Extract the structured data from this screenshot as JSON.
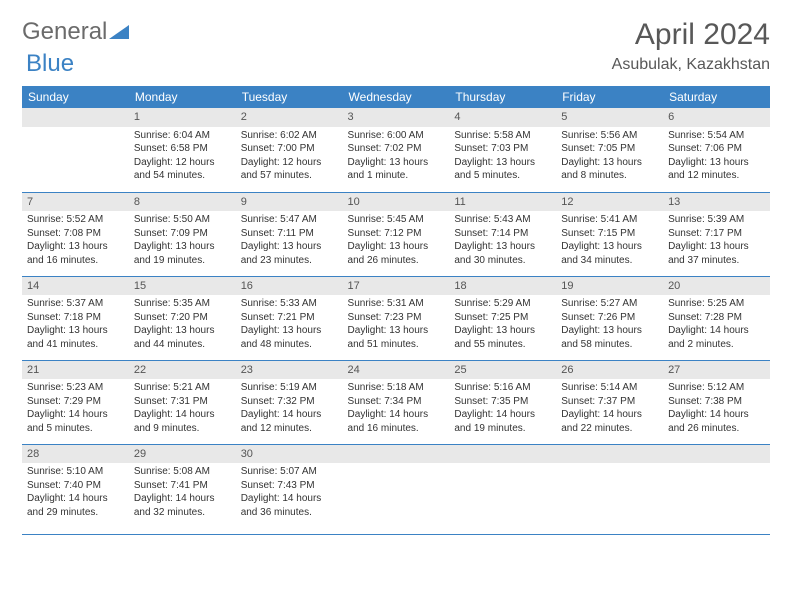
{
  "logo": {
    "word1": "General",
    "word2": "Blue"
  },
  "title": "April 2024",
  "location": "Asubulak, Kazakhstan",
  "colors": {
    "header_bg": "#3b82c4",
    "header_fg": "#ffffff",
    "daynum_bg": "#e8e8e8",
    "border": "#3b82c4",
    "logo_gray": "#6b6b6b",
    "logo_blue": "#3b82c4"
  },
  "weekdays": [
    "Sunday",
    "Monday",
    "Tuesday",
    "Wednesday",
    "Thursday",
    "Friday",
    "Saturday"
  ],
  "weeks": [
    [
      {
        "day": "",
        "lines": []
      },
      {
        "day": "1",
        "lines": [
          "Sunrise: 6:04 AM",
          "Sunset: 6:58 PM",
          "Daylight: 12 hours",
          "and 54 minutes."
        ]
      },
      {
        "day": "2",
        "lines": [
          "Sunrise: 6:02 AM",
          "Sunset: 7:00 PM",
          "Daylight: 12 hours",
          "and 57 minutes."
        ]
      },
      {
        "day": "3",
        "lines": [
          "Sunrise: 6:00 AM",
          "Sunset: 7:02 PM",
          "Daylight: 13 hours",
          "and 1 minute."
        ]
      },
      {
        "day": "4",
        "lines": [
          "Sunrise: 5:58 AM",
          "Sunset: 7:03 PM",
          "Daylight: 13 hours",
          "and 5 minutes."
        ]
      },
      {
        "day": "5",
        "lines": [
          "Sunrise: 5:56 AM",
          "Sunset: 7:05 PM",
          "Daylight: 13 hours",
          "and 8 minutes."
        ]
      },
      {
        "day": "6",
        "lines": [
          "Sunrise: 5:54 AM",
          "Sunset: 7:06 PM",
          "Daylight: 13 hours",
          "and 12 minutes."
        ]
      }
    ],
    [
      {
        "day": "7",
        "lines": [
          "Sunrise: 5:52 AM",
          "Sunset: 7:08 PM",
          "Daylight: 13 hours",
          "and 16 minutes."
        ]
      },
      {
        "day": "8",
        "lines": [
          "Sunrise: 5:50 AM",
          "Sunset: 7:09 PM",
          "Daylight: 13 hours",
          "and 19 minutes."
        ]
      },
      {
        "day": "9",
        "lines": [
          "Sunrise: 5:47 AM",
          "Sunset: 7:11 PM",
          "Daylight: 13 hours",
          "and 23 minutes."
        ]
      },
      {
        "day": "10",
        "lines": [
          "Sunrise: 5:45 AM",
          "Sunset: 7:12 PM",
          "Daylight: 13 hours",
          "and 26 minutes."
        ]
      },
      {
        "day": "11",
        "lines": [
          "Sunrise: 5:43 AM",
          "Sunset: 7:14 PM",
          "Daylight: 13 hours",
          "and 30 minutes."
        ]
      },
      {
        "day": "12",
        "lines": [
          "Sunrise: 5:41 AM",
          "Sunset: 7:15 PM",
          "Daylight: 13 hours",
          "and 34 minutes."
        ]
      },
      {
        "day": "13",
        "lines": [
          "Sunrise: 5:39 AM",
          "Sunset: 7:17 PM",
          "Daylight: 13 hours",
          "and 37 minutes."
        ]
      }
    ],
    [
      {
        "day": "14",
        "lines": [
          "Sunrise: 5:37 AM",
          "Sunset: 7:18 PM",
          "Daylight: 13 hours",
          "and 41 minutes."
        ]
      },
      {
        "day": "15",
        "lines": [
          "Sunrise: 5:35 AM",
          "Sunset: 7:20 PM",
          "Daylight: 13 hours",
          "and 44 minutes."
        ]
      },
      {
        "day": "16",
        "lines": [
          "Sunrise: 5:33 AM",
          "Sunset: 7:21 PM",
          "Daylight: 13 hours",
          "and 48 minutes."
        ]
      },
      {
        "day": "17",
        "lines": [
          "Sunrise: 5:31 AM",
          "Sunset: 7:23 PM",
          "Daylight: 13 hours",
          "and 51 minutes."
        ]
      },
      {
        "day": "18",
        "lines": [
          "Sunrise: 5:29 AM",
          "Sunset: 7:25 PM",
          "Daylight: 13 hours",
          "and 55 minutes."
        ]
      },
      {
        "day": "19",
        "lines": [
          "Sunrise: 5:27 AM",
          "Sunset: 7:26 PM",
          "Daylight: 13 hours",
          "and 58 minutes."
        ]
      },
      {
        "day": "20",
        "lines": [
          "Sunrise: 5:25 AM",
          "Sunset: 7:28 PM",
          "Daylight: 14 hours",
          "and 2 minutes."
        ]
      }
    ],
    [
      {
        "day": "21",
        "lines": [
          "Sunrise: 5:23 AM",
          "Sunset: 7:29 PM",
          "Daylight: 14 hours",
          "and 5 minutes."
        ]
      },
      {
        "day": "22",
        "lines": [
          "Sunrise: 5:21 AM",
          "Sunset: 7:31 PM",
          "Daylight: 14 hours",
          "and 9 minutes."
        ]
      },
      {
        "day": "23",
        "lines": [
          "Sunrise: 5:19 AM",
          "Sunset: 7:32 PM",
          "Daylight: 14 hours",
          "and 12 minutes."
        ]
      },
      {
        "day": "24",
        "lines": [
          "Sunrise: 5:18 AM",
          "Sunset: 7:34 PM",
          "Daylight: 14 hours",
          "and 16 minutes."
        ]
      },
      {
        "day": "25",
        "lines": [
          "Sunrise: 5:16 AM",
          "Sunset: 7:35 PM",
          "Daylight: 14 hours",
          "and 19 minutes."
        ]
      },
      {
        "day": "26",
        "lines": [
          "Sunrise: 5:14 AM",
          "Sunset: 7:37 PM",
          "Daylight: 14 hours",
          "and 22 minutes."
        ]
      },
      {
        "day": "27",
        "lines": [
          "Sunrise: 5:12 AM",
          "Sunset: 7:38 PM",
          "Daylight: 14 hours",
          "and 26 minutes."
        ]
      }
    ],
    [
      {
        "day": "28",
        "lines": [
          "Sunrise: 5:10 AM",
          "Sunset: 7:40 PM",
          "Daylight: 14 hours",
          "and 29 minutes."
        ]
      },
      {
        "day": "29",
        "lines": [
          "Sunrise: 5:08 AM",
          "Sunset: 7:41 PM",
          "Daylight: 14 hours",
          "and 32 minutes."
        ]
      },
      {
        "day": "30",
        "lines": [
          "Sunrise: 5:07 AM",
          "Sunset: 7:43 PM",
          "Daylight: 14 hours",
          "and 36 minutes."
        ]
      },
      {
        "day": "",
        "lines": []
      },
      {
        "day": "",
        "lines": []
      },
      {
        "day": "",
        "lines": []
      },
      {
        "day": "",
        "lines": []
      }
    ]
  ]
}
